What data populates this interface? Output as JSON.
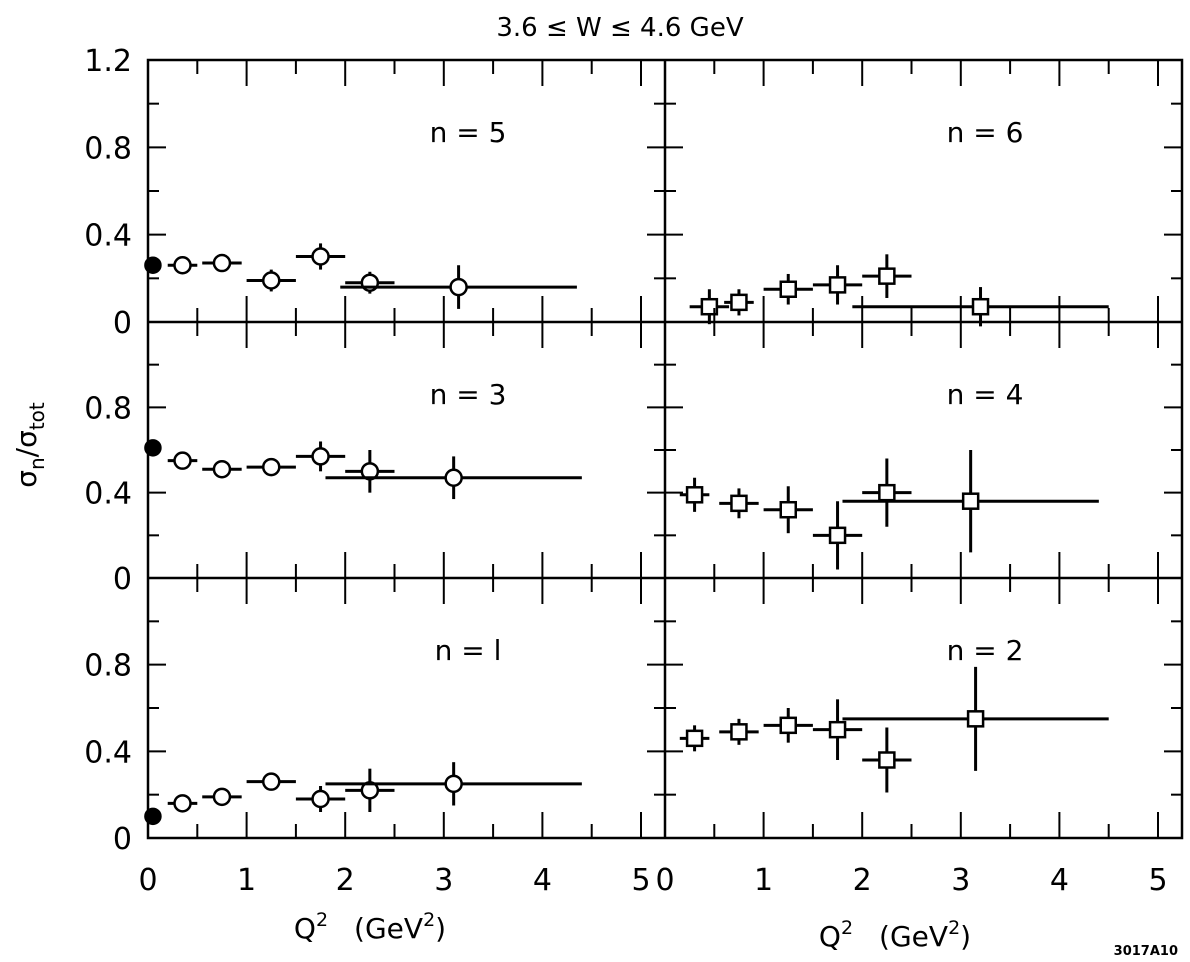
{
  "figure": {
    "title": "3.6 ≤ W ≤ 4.6 GeV",
    "ylabel_main": "σ",
    "ylabel_sub_n": "n",
    "ylabel_slash": "/σ",
    "ylabel_sub_tot": "tot",
    "xlabel_main": "Q",
    "xlabel_sup": "2",
    "xlabel_unit_open": "(GeV",
    "xlabel_unit_sup": "2",
    "xlabel_unit_close": ")",
    "figure_id": "3017A10",
    "y_tick_labels_top": [
      "1.2",
      "0.8",
      "0.4",
      "0"
    ],
    "y_tick_labels_mid": [
      "0.8",
      "0.4",
      "0"
    ],
    "y_tick_labels_bot": [
      "0.8",
      "0.4",
      "0"
    ],
    "x_tick_labels_left": [
      "0",
      "1",
      "2",
      "3",
      "4",
      "5"
    ],
    "x_tick_labels_right": [
      "0",
      "1",
      "2",
      "3",
      "4",
      "5"
    ]
  },
  "chart_data": [
    {
      "type": "scatter",
      "label": "n = 5",
      "marker": "circle",
      "xlim": [
        0,
        5
      ],
      "ylim": [
        0,
        1.2
      ],
      "filled_points": [
        {
          "x": 0.05,
          "y": 0.26
        }
      ],
      "points": [
        {
          "x": 0.35,
          "y": 0.26,
          "xerr": 0.15,
          "yerr": 0.03
        },
        {
          "x": 0.75,
          "y": 0.27,
          "xerr": 0.2,
          "yerr": 0.04
        },
        {
          "x": 1.25,
          "y": 0.19,
          "xerr": 0.25,
          "yerr": 0.05
        },
        {
          "x": 1.75,
          "y": 0.3,
          "xerr": 0.25,
          "yerr": 0.06
        },
        {
          "x": 2.25,
          "y": 0.18,
          "xerr": 0.25,
          "yerr": 0.05
        },
        {
          "x": 3.15,
          "y": 0.16,
          "xerr": 1.2,
          "yerr": 0.1
        }
      ]
    },
    {
      "type": "scatter",
      "label": "n = 6",
      "marker": "square",
      "xlim": [
        0,
        5
      ],
      "ylim": [
        0,
        1.2
      ],
      "points": [
        {
          "x": 0.45,
          "y": 0.07,
          "xerr": 0.2,
          "yerr": 0.08
        },
        {
          "x": 0.75,
          "y": 0.09,
          "xerr": 0.15,
          "yerr": 0.06
        },
        {
          "x": 1.25,
          "y": 0.15,
          "xerr": 0.25,
          "yerr": 0.07
        },
        {
          "x": 1.75,
          "y": 0.17,
          "xerr": 0.25,
          "yerr": 0.09
        },
        {
          "x": 2.25,
          "y": 0.21,
          "xerr": 0.25,
          "yerr": 0.1
        },
        {
          "x": 3.2,
          "y": 0.07,
          "xerr": 1.3,
          "yerr": 0.09
        }
      ]
    },
    {
      "type": "scatter",
      "label": "n = 3",
      "marker": "circle",
      "xlim": [
        0,
        5
      ],
      "ylim": [
        0,
        1.2
      ],
      "filled_points": [
        {
          "x": 0.05,
          "y": 0.61
        }
      ],
      "points": [
        {
          "x": 0.35,
          "y": 0.55,
          "xerr": 0.15,
          "yerr": 0.04
        },
        {
          "x": 0.75,
          "y": 0.51,
          "xerr": 0.2,
          "yerr": 0.03
        },
        {
          "x": 1.25,
          "y": 0.52,
          "xerr": 0.25,
          "yerr": 0.04
        },
        {
          "x": 1.75,
          "y": 0.57,
          "xerr": 0.25,
          "yerr": 0.07
        },
        {
          "x": 2.25,
          "y": 0.5,
          "xerr": 0.25,
          "yerr": 0.1
        },
        {
          "x": 3.1,
          "y": 0.47,
          "xerr": 1.3,
          "yerr": 0.1
        }
      ]
    },
    {
      "type": "scatter",
      "label": "n = 4",
      "marker": "square",
      "xlim": [
        0,
        5
      ],
      "ylim": [
        0,
        1.2
      ],
      "points": [
        {
          "x": 0.3,
          "y": 0.39,
          "xerr": 0.15,
          "yerr": 0.08
        },
        {
          "x": 0.75,
          "y": 0.35,
          "xerr": 0.2,
          "yerr": 0.07
        },
        {
          "x": 1.25,
          "y": 0.32,
          "xerr": 0.25,
          "yerr": 0.11
        },
        {
          "x": 1.75,
          "y": 0.2,
          "xerr": 0.25,
          "yerr": 0.16
        },
        {
          "x": 2.25,
          "y": 0.4,
          "xerr": 0.25,
          "yerr": 0.16
        },
        {
          "x": 3.1,
          "y": 0.36,
          "xerr": 1.3,
          "yerr": 0.24
        }
      ]
    },
    {
      "type": "scatter",
      "label": "n = l",
      "marker": "circle",
      "xlim": [
        0,
        5
      ],
      "ylim": [
        0,
        1.2
      ],
      "filled_points": [
        {
          "x": 0.05,
          "y": 0.1
        }
      ],
      "points": [
        {
          "x": 0.35,
          "y": 0.16,
          "xerr": 0.15,
          "yerr": 0.02
        },
        {
          "x": 0.75,
          "y": 0.19,
          "xerr": 0.2,
          "yerr": 0.03
        },
        {
          "x": 1.25,
          "y": 0.26,
          "xerr": 0.25,
          "yerr": 0.03
        },
        {
          "x": 1.75,
          "y": 0.18,
          "xerr": 0.25,
          "yerr": 0.06
        },
        {
          "x": 2.25,
          "y": 0.22,
          "xerr": 0.25,
          "yerr": 0.1
        },
        {
          "x": 3.1,
          "y": 0.25,
          "xerr": 1.3,
          "yerr": 0.1
        }
      ]
    },
    {
      "type": "scatter",
      "label": "n = 2",
      "marker": "square",
      "xlim": [
        0,
        5
      ],
      "ylim": [
        0,
        1.2
      ],
      "points": [
        {
          "x": 0.3,
          "y": 0.46,
          "xerr": 0.15,
          "yerr": 0.06
        },
        {
          "x": 0.75,
          "y": 0.49,
          "xerr": 0.2,
          "yerr": 0.06
        },
        {
          "x": 1.25,
          "y": 0.52,
          "xerr": 0.25,
          "yerr": 0.08
        },
        {
          "x": 1.75,
          "y": 0.5,
          "xerr": 0.25,
          "yerr": 0.14
        },
        {
          "x": 2.25,
          "y": 0.36,
          "xerr": 0.25,
          "yerr": 0.15
        },
        {
          "x": 3.15,
          "y": 0.55,
          "xerr": 1.35,
          "yerr": 0.24
        }
      ]
    }
  ]
}
